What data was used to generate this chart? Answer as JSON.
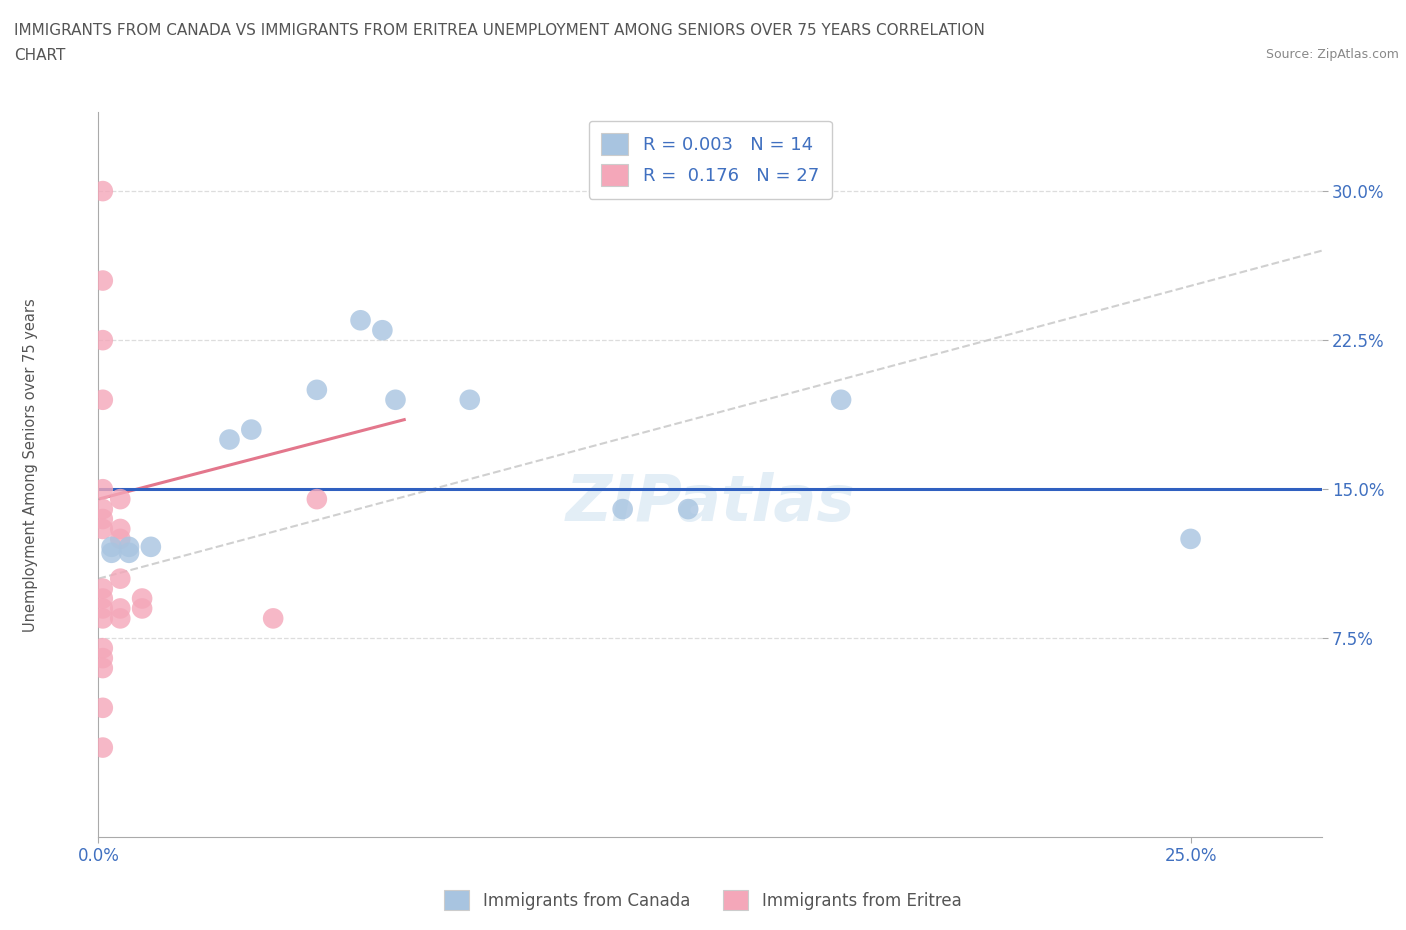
{
  "title_line1": "IMMIGRANTS FROM CANADA VS IMMIGRANTS FROM ERITREA UNEMPLOYMENT AMONG SENIORS OVER 75 YEARS CORRELATION",
  "title_line2": "CHART",
  "source": "Source: ZipAtlas.com",
  "xlim": [
    0.0,
    0.28
  ],
  "ylim": [
    -0.025,
    0.34
  ],
  "hline_y": 0.15,
  "watermark": "ZIPatlas",
  "canada_color": "#a8c4e0",
  "eritrea_color": "#f4a7b9",
  "canada_trend_color": "#c8c8c8",
  "eritrea_trend_color": "#e06880",
  "hline_color": "#3060c0",
  "title_color": "#555555",
  "axis_label_color": "#4070c0",
  "canada_points": [
    [
      0.003,
      0.121
    ],
    [
      0.003,
      0.118
    ],
    [
      0.007,
      0.121
    ],
    [
      0.007,
      0.118
    ],
    [
      0.012,
      0.121
    ],
    [
      0.03,
      0.175
    ],
    [
      0.035,
      0.18
    ],
    [
      0.05,
      0.2
    ],
    [
      0.06,
      0.235
    ],
    [
      0.065,
      0.23
    ],
    [
      0.068,
      0.195
    ],
    [
      0.085,
      0.195
    ],
    [
      0.12,
      0.14
    ],
    [
      0.135,
      0.14
    ],
    [
      0.17,
      0.195
    ],
    [
      0.25,
      0.125
    ]
  ],
  "eritrea_points": [
    [
      0.001,
      0.3
    ],
    [
      0.001,
      0.255
    ],
    [
      0.001,
      0.225
    ],
    [
      0.001,
      0.195
    ],
    [
      0.001,
      0.15
    ],
    [
      0.001,
      0.14
    ],
    [
      0.001,
      0.135
    ],
    [
      0.001,
      0.13
    ],
    [
      0.001,
      0.1
    ],
    [
      0.001,
      0.095
    ],
    [
      0.001,
      0.09
    ],
    [
      0.001,
      0.085
    ],
    [
      0.001,
      0.07
    ],
    [
      0.001,
      0.065
    ],
    [
      0.001,
      0.06
    ],
    [
      0.001,
      0.04
    ],
    [
      0.001,
      0.02
    ],
    [
      0.005,
      0.145
    ],
    [
      0.005,
      0.13
    ],
    [
      0.005,
      0.125
    ],
    [
      0.005,
      0.105
    ],
    [
      0.005,
      0.09
    ],
    [
      0.005,
      0.085
    ],
    [
      0.01,
      0.095
    ],
    [
      0.01,
      0.09
    ],
    [
      0.04,
      0.085
    ],
    [
      0.05,
      0.145
    ]
  ],
  "canada_trend_x": [
    0.0,
    0.28
  ],
  "canada_trend_y": [
    0.105,
    0.27
  ],
  "eritrea_trend_x": [
    0.0,
    0.07
  ],
  "eritrea_trend_y": [
    0.145,
    0.185
  ]
}
